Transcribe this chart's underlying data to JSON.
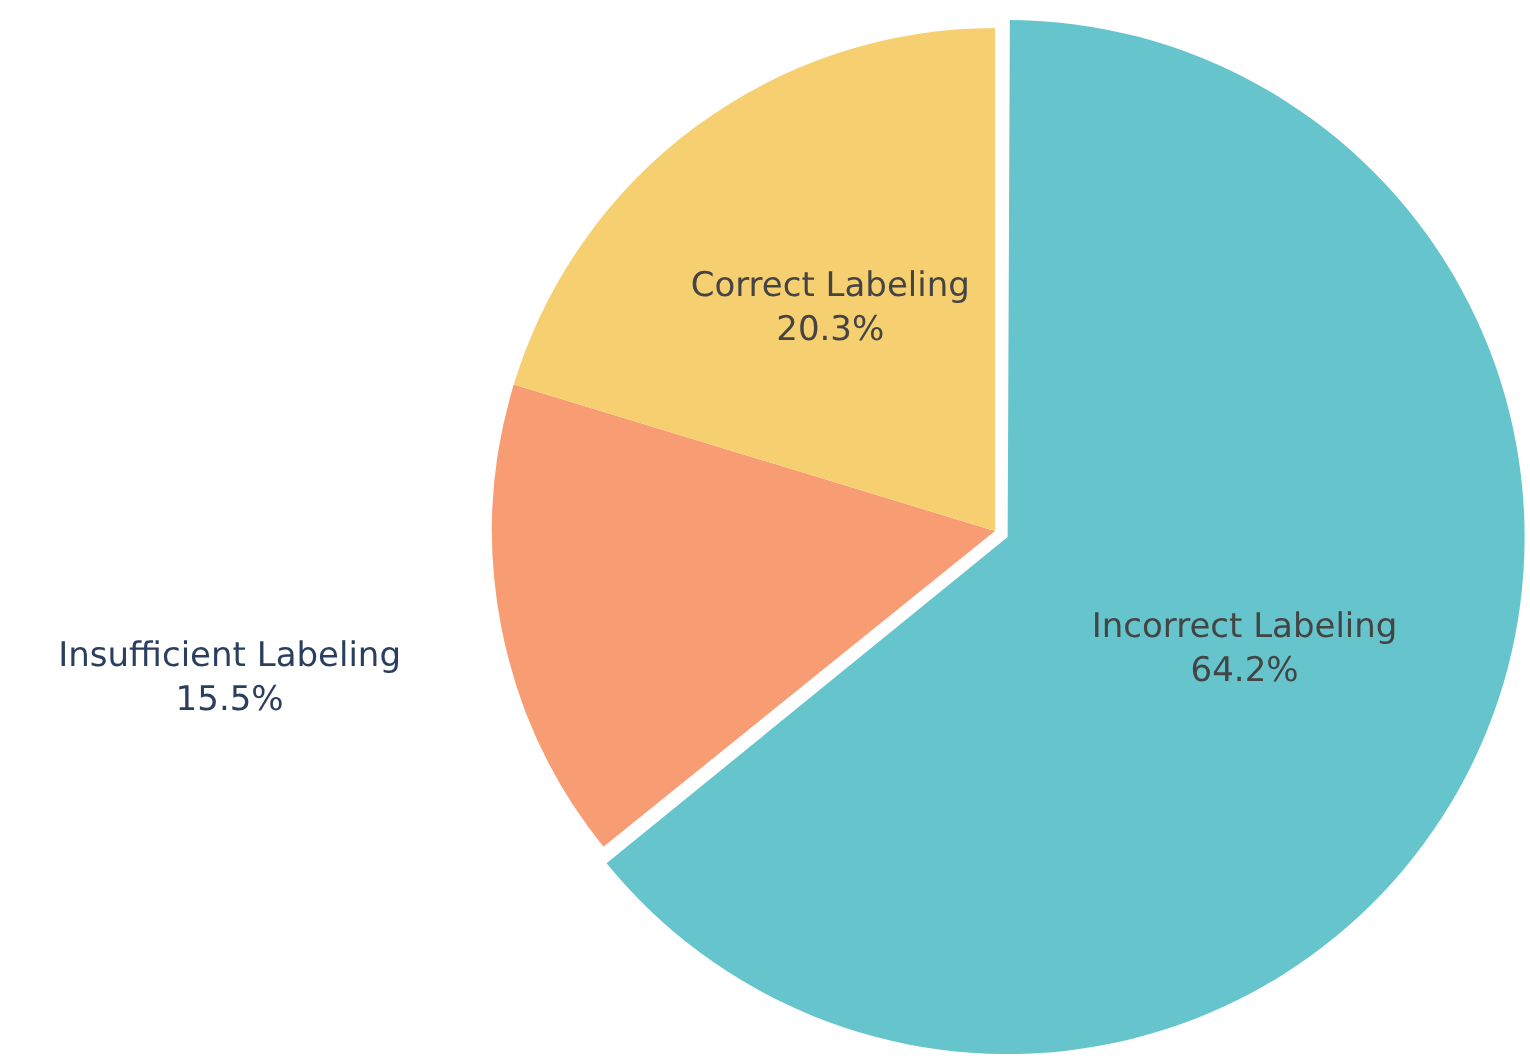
{
  "chart_data": {
    "type": "pie",
    "categories": [
      "Incorrect Labeling",
      "Insufficient Labeling",
      "Correct Labeling"
    ],
    "values": [
      64.2,
      15.5,
      20.3
    ],
    "colors": [
      "#66c5cc",
      "#f89c74",
      "#f6cf71"
    ],
    "value_labels": [
      "64.2%",
      "15.5%",
      "20.3%"
    ],
    "legend": false
  }
}
